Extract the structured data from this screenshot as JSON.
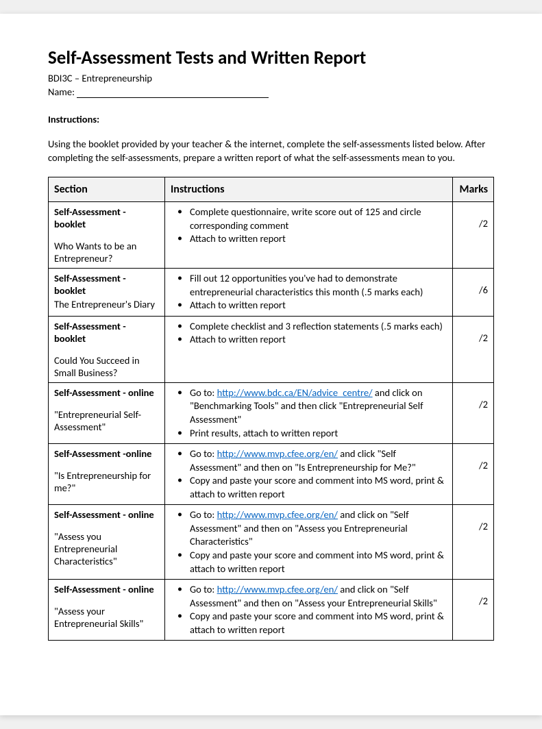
{
  "title": "Self-Assessment Tests and Written Report",
  "course": "BDI3C – Entrepreneurship",
  "name_label": "Name:",
  "instructions_label": "Instructions:",
  "instructions_text": "Using the booklet provided by your teacher & the internet, complete the self-assessments listed below. After completing the self-assessments, prepare a written report of what the self-assessments mean to you.",
  "table": {
    "headers": {
      "section": "Section",
      "instructions": "Instructions",
      "marks": "Marks"
    },
    "rows": [
      {
        "section_title": "Self-Assessment - booklet",
        "section_sub": "Who Wants to be an Entrepreneur?",
        "bullets": [
          {
            "text": "Complete questionnaire, write score out of 125 and circle corresponding comment"
          },
          {
            "text": "Attach to written report"
          }
        ],
        "marks": "/2"
      },
      {
        "section_title": "Self-Assessment - booklet",
        "section_sub": "The Entrepreneur's Diary",
        "tight": true,
        "bullets": [
          {
            "text": "Fill out 12 opportunities you've had to demonstrate entrepreneurial characteristics this month (.5 marks each)"
          },
          {
            "text": "Attach to written report"
          }
        ],
        "marks": "/6"
      },
      {
        "section_title": "Self-Assessment - booklet",
        "section_sub": "Could You Succeed in Small Business?",
        "bullets": [
          {
            "text": "Complete checklist and 3 reflection statements (.5 marks each)"
          },
          {
            "text": "Attach to written report"
          }
        ],
        "marks": "/2"
      },
      {
        "section_title": "Self-Assessment - online",
        "section_sub": "\"Entrepreneurial Self-Assessment\"",
        "bullets": [
          {
            "pre": "Go to: ",
            "link": "http://www.bdc.ca/EN/advice_centre/",
            "post": " and click on \"Benchmarking Tools\" and then click \"Entrepreneurial Self Assessment\""
          },
          {
            "text": "Print results, attach to written report"
          }
        ],
        "marks": "/2"
      },
      {
        "section_title": "Self-Assessment -online",
        "section_sub": "\"Is Entrepreneurship for me?\"",
        "bullets": [
          {
            "pre": "Go to: ",
            "link": "http://www.mvp.cfee.org/en/",
            "post": " and click \"Self Assessment\" and then on \"Is Entrepreneurship for Me?\""
          },
          {
            "text": "Copy and paste your score and comment into MS word, print & attach to written report"
          }
        ],
        "marks": "/2"
      },
      {
        "section_title": "Self-Assessment - online",
        "section_sub": "\"Assess you Entrepreneurial Characteristics\"",
        "bullets": [
          {
            "pre": "Go to: ",
            "link": "http://www.mvp.cfee.org/en/",
            "post": " and click on \"Self Assessment\" and then on \"Assess you Entrepreneurial Characteristics\""
          },
          {
            "text": "Copy and paste your score and comment into MS word, print & attach to written report"
          }
        ],
        "marks": "/2"
      },
      {
        "section_title": "Self-Assessment - online",
        "section_sub": "\"Assess your Entrepreneurial Skills\"",
        "bullets": [
          {
            "pre": "Go to: ",
            "link": "http://www.mvp.cfee.org/en/",
            "post": " and click on \"Self Assessment\" and then on \"Assess your Entrepreneurial Skills\""
          },
          {
            "text": "Copy and paste your score and comment into MS word, print & attach to written report"
          }
        ],
        "marks": "/2"
      }
    ]
  }
}
